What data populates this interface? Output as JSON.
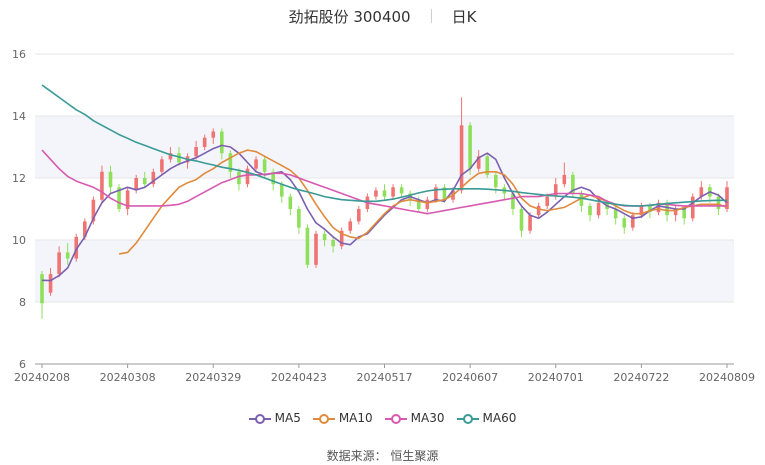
{
  "title": {
    "stock": "劲拓股份 300400",
    "period": "日K"
  },
  "source": "数据来源： 恒生聚源",
  "chart_data": {
    "type": "candlestick",
    "y_ticks": [
      6,
      8,
      10,
      12,
      14,
      16
    ],
    "ylim": [
      6,
      16
    ],
    "x_tick_labels": [
      "20240208",
      "20240308",
      "20240329",
      "20240423",
      "20240517",
      "20240607",
      "20240701",
      "20240722",
      "20240809"
    ],
    "x_tick_index": [
      0,
      10,
      20,
      30,
      40,
      50,
      60,
      70,
      80
    ],
    "up_color": "#f07373",
    "down_color": "#8ee05a",
    "grid": true,
    "legend_position": "bottom",
    "candles": [
      [
        8.9,
        7.96,
        9.0,
        7.45
      ],
      [
        8.3,
        8.9,
        9.1,
        8.2
      ],
      [
        8.9,
        9.6,
        9.8,
        8.8
      ],
      [
        9.6,
        9.4,
        9.9,
        9.2
      ],
      [
        9.4,
        10.1,
        10.2,
        9.3
      ],
      [
        10.1,
        10.6,
        10.7,
        10.0
      ],
      [
        10.6,
        11.3,
        11.4,
        10.5
      ],
      [
        11.3,
        12.2,
        12.4,
        11.2
      ],
      [
        12.2,
        11.7,
        12.4,
        11.5
      ],
      [
        11.7,
        11.0,
        11.8,
        10.9
      ],
      [
        11.0,
        11.6,
        11.7,
        10.8
      ],
      [
        11.6,
        12.0,
        12.1,
        11.5
      ],
      [
        12.0,
        11.8,
        12.2,
        11.7
      ],
      [
        11.8,
        12.2,
        12.3,
        11.7
      ],
      [
        12.2,
        12.6,
        12.7,
        12.1
      ],
      [
        12.6,
        12.8,
        13.0,
        12.5
      ],
      [
        12.8,
        12.5,
        13.0,
        12.4
      ],
      [
        12.5,
        12.7,
        12.8,
        12.3
      ],
      [
        12.7,
        13.0,
        13.2,
        12.6
      ],
      [
        13.0,
        13.3,
        13.4,
        12.9
      ],
      [
        13.3,
        13.5,
        13.6,
        13.1
      ],
      [
        13.5,
        12.8,
        13.6,
        12.6
      ],
      [
        12.8,
        12.2,
        12.9,
        12.0
      ],
      [
        12.2,
        11.8,
        12.3,
        11.6
      ],
      [
        11.8,
        12.3,
        12.4,
        11.7
      ],
      [
        12.3,
        12.6,
        12.7,
        12.2
      ],
      [
        12.6,
        12.2,
        12.7,
        12.0
      ],
      [
        12.2,
        11.8,
        12.3,
        11.6
      ],
      [
        11.8,
        11.4,
        11.9,
        11.2
      ],
      [
        11.4,
        11.0,
        11.5,
        10.8
      ],
      [
        11.0,
        10.4,
        11.1,
        10.2
      ],
      [
        10.4,
        9.2,
        10.5,
        9.1
      ],
      [
        9.2,
        10.2,
        10.3,
        9.1
      ],
      [
        10.2,
        10.0,
        10.3,
        9.8
      ],
      [
        10.0,
        9.8,
        10.1,
        9.6
      ],
      [
        9.8,
        10.3,
        10.4,
        9.7
      ],
      [
        10.3,
        10.6,
        10.7,
        10.2
      ],
      [
        10.6,
        11.0,
        11.1,
        10.5
      ],
      [
        11.0,
        11.4,
        11.5,
        10.9
      ],
      [
        11.4,
        11.6,
        11.7,
        11.3
      ],
      [
        11.6,
        11.4,
        11.8,
        11.3
      ],
      [
        11.4,
        11.7,
        11.8,
        11.3
      ],
      [
        11.7,
        11.5,
        11.8,
        11.4
      ],
      [
        11.5,
        11.3,
        11.6,
        11.1
      ],
      [
        11.3,
        11.0,
        11.4,
        10.9
      ],
      [
        11.0,
        11.3,
        11.4,
        10.9
      ],
      [
        11.3,
        11.7,
        11.8,
        11.2
      ],
      [
        11.7,
        11.3,
        11.8,
        11.2
      ],
      [
        11.3,
        11.6,
        11.7,
        11.2
      ],
      [
        11.6,
        13.7,
        14.6,
        11.5
      ],
      [
        13.7,
        12.3,
        13.8,
        12.1
      ],
      [
        12.3,
        12.7,
        12.9,
        12.2
      ],
      [
        12.7,
        12.1,
        12.8,
        12.0
      ],
      [
        12.1,
        11.7,
        12.2,
        11.5
      ],
      [
        11.7,
        11.5,
        11.8,
        11.3
      ],
      [
        11.5,
        11.0,
        11.6,
        10.8
      ],
      [
        11.0,
        10.3,
        11.1,
        10.1
      ],
      [
        10.3,
        10.8,
        10.9,
        10.2
      ],
      [
        10.8,
        11.1,
        11.2,
        10.7
      ],
      [
        11.1,
        11.4,
        11.5,
        11.0
      ],
      [
        11.4,
        11.8,
        12.0,
        11.3
      ],
      [
        11.8,
        12.1,
        12.5,
        11.7
      ],
      [
        12.1,
        11.5,
        12.2,
        11.4
      ],
      [
        11.5,
        11.1,
        11.6,
        10.9
      ],
      [
        11.1,
        10.8,
        11.2,
        10.6
      ],
      [
        10.8,
        11.2,
        11.3,
        10.7
      ],
      [
        11.2,
        11.0,
        11.3,
        10.8
      ],
      [
        11.0,
        10.7,
        11.1,
        10.5
      ],
      [
        10.7,
        10.4,
        10.8,
        10.2
      ],
      [
        10.4,
        10.8,
        10.9,
        10.3
      ],
      [
        10.8,
        11.1,
        11.2,
        10.7
      ],
      [
        11.1,
        10.9,
        11.2,
        10.7
      ],
      [
        10.9,
        11.2,
        11.3,
        10.8
      ],
      [
        11.2,
        10.8,
        11.3,
        10.6
      ],
      [
        10.8,
        11.0,
        11.1,
        10.6
      ],
      [
        11.0,
        10.7,
        11.1,
        10.5
      ],
      [
        10.7,
        11.4,
        11.5,
        10.6
      ],
      [
        11.4,
        11.7,
        11.9,
        11.3
      ],
      [
        11.7,
        11.4,
        11.8,
        11.2
      ],
      [
        11.4,
        11.0,
        11.5,
        10.8
      ],
      [
        11.0,
        11.7,
        11.9,
        10.9
      ]
    ],
    "series": [
      {
        "name": "MA5",
        "color": "#7b5fb0",
        "values": [
          8.7,
          8.69,
          8.85,
          9.1,
          9.7,
          10.1,
          10.7,
          11.2,
          11.5,
          11.6,
          11.7,
          11.62,
          11.7,
          11.9,
          12.1,
          12.3,
          12.45,
          12.55,
          12.65,
          12.8,
          12.95,
          13.05,
          13.0,
          12.8,
          12.5,
          12.2,
          12.1,
          12.15,
          12.2,
          11.95,
          11.55,
          11.0,
          10.55,
          10.35,
          10.1,
          9.9,
          9.85,
          10.1,
          10.2,
          10.5,
          10.8,
          11.05,
          11.3,
          11.4,
          11.3,
          11.2,
          11.3,
          11.25,
          11.6,
          12.1,
          12.3,
          12.65,
          12.8,
          12.6,
          12.0,
          11.5,
          11.1,
          10.8,
          10.7,
          10.9,
          11.15,
          11.4,
          11.6,
          11.7,
          11.6,
          11.3,
          11.1,
          11.0,
          10.85,
          10.7,
          10.75,
          10.95,
          11.1,
          11.05,
          11.0,
          11.0,
          11.2,
          11.4,
          11.55,
          11.45,
          11.2
        ]
      },
      {
        "name": "MA10",
        "color": "#e08a3c",
        "values": [
          null,
          null,
          null,
          null,
          null,
          null,
          null,
          null,
          null,
          9.55,
          9.6,
          9.9,
          10.3,
          10.7,
          11.1,
          11.4,
          11.7,
          11.85,
          11.95,
          12.15,
          12.3,
          12.5,
          12.65,
          12.8,
          12.9,
          12.85,
          12.7,
          12.55,
          12.4,
          12.25,
          12.0,
          11.6,
          11.15,
          10.75,
          10.4,
          10.2,
          10.1,
          10.05,
          10.25,
          10.55,
          10.85,
          11.1,
          11.25,
          11.3,
          11.25,
          11.2,
          11.25,
          11.3,
          11.45,
          11.7,
          11.95,
          12.15,
          12.2,
          12.2,
          12.1,
          11.8,
          11.35,
          11.1,
          11.0,
          10.95,
          11.0,
          11.05,
          11.2,
          11.35,
          11.45,
          11.35,
          11.25,
          11.1,
          10.95,
          10.85,
          10.85,
          10.95,
          11.0,
          10.95,
          10.95,
          11.05,
          11.1,
          11.15,
          11.15,
          11.15,
          11.05
        ]
      },
      {
        "name": "MA30",
        "color": "#d75ab0",
        "values": [
          12.9,
          12.6,
          12.3,
          12.05,
          11.9,
          11.8,
          11.7,
          11.55,
          11.35,
          11.2,
          11.1,
          11.1,
          11.1,
          11.1,
          11.1,
          11.12,
          11.15,
          11.25,
          11.4,
          11.55,
          11.7,
          11.85,
          11.95,
          12.05,
          12.1,
          12.1,
          12.12,
          12.15,
          12.15,
          12.1,
          12.0,
          11.9,
          11.8,
          11.7,
          11.6,
          11.5,
          11.4,
          11.3,
          11.2,
          11.15,
          11.1,
          11.05,
          11.0,
          10.95,
          10.9,
          10.85,
          10.9,
          10.95,
          11.0,
          11.05,
          11.1,
          11.15,
          11.2,
          11.25,
          11.3,
          11.35,
          11.4,
          11.4,
          11.4,
          11.45,
          11.5,
          11.5,
          11.5,
          11.5,
          11.45,
          11.4,
          11.25,
          11.15,
          11.1,
          11.1,
          11.1,
          11.12,
          11.15,
          11.15,
          11.12,
          11.1,
          11.1,
          11.1,
          11.1,
          11.1,
          11.1
        ]
      },
      {
        "name": "MA60",
        "color": "#3a9a96",
        "values": [
          15.0,
          14.8,
          14.6,
          14.4,
          14.2,
          14.05,
          13.85,
          13.7,
          13.55,
          13.4,
          13.28,
          13.15,
          13.05,
          12.95,
          12.85,
          12.75,
          12.68,
          12.6,
          12.55,
          12.48,
          12.42,
          12.35,
          12.3,
          12.25,
          12.18,
          12.1,
          12.0,
          11.9,
          11.8,
          11.7,
          11.62,
          11.55,
          11.48,
          11.4,
          11.35,
          11.3,
          11.28,
          11.26,
          11.25,
          11.25,
          11.28,
          11.32,
          11.38,
          11.45,
          11.52,
          11.58,
          11.62,
          11.64,
          11.65,
          11.65,
          11.65,
          11.65,
          11.64,
          11.62,
          11.6,
          11.57,
          11.53,
          11.5,
          11.47,
          11.44,
          11.42,
          11.4,
          11.38,
          11.35,
          11.3,
          11.25,
          11.2,
          11.15,
          11.12,
          11.1,
          11.1,
          11.12,
          11.15,
          11.18,
          11.2,
          11.22,
          11.24,
          11.26,
          11.27,
          11.28,
          11.28
        ]
      }
    ]
  }
}
